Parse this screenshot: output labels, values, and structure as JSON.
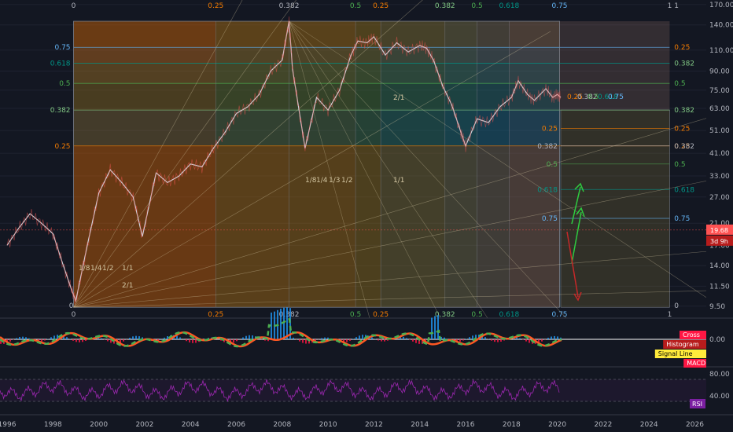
{
  "chart_data": [
    {
      "type": "line",
      "panel": "price",
      "scale": "log",
      "ylim": [
        9,
        175
      ],
      "y_ticks": [
        "170.00",
        "140.00",
        "110.00",
        "90.00",
        "75.00",
        "63.00",
        "51.00",
        "41.00",
        "33.00",
        "27.00",
        "21.00",
        "17.00",
        "14.00",
        "11.50",
        "9.50"
      ],
      "x_ticks": [
        "1996",
        "1998",
        "2000",
        "2002",
        "2004",
        "2006",
        "2008",
        "2010",
        "2012",
        "2014",
        "2016",
        "2018",
        "2020",
        "2022",
        "2024",
        "2026"
      ],
      "x_range": [
        1996,
        2027
      ],
      "series": [
        {
          "x": [
            1996.0,
            1996.5,
            1997.0,
            1997.5,
            1998.0,
            1998.4,
            1998.8,
            1999.0,
            1999.5,
            2000.0,
            2000.5,
            2001.0,
            2001.5,
            2001.9,
            2002.5,
            2003.0,
            2003.5,
            2004.0,
            2004.5,
            2005.0,
            2005.5,
            2006.0,
            2006.5,
            2007.0,
            2007.5,
            2008.0,
            2008.3,
            2008.45,
            2008.7,
            2009.0,
            2009.5,
            2010.0,
            2010.5,
            2011.0,
            2011.3,
            2011.7,
            2012.0,
            2012.5,
            2013.0,
            2013.5,
            2014.0,
            2014.3,
            2014.6,
            2015.0,
            2015.4,
            2015.8,
            2016.0,
            2016.5,
            2017.0,
            2017.5,
            2018.0,
            2018.3,
            2018.7,
            2019.0,
            2019.5,
            2019.8,
            2020.0,
            2020.15
          ],
          "values": [
            17,
            20,
            23,
            21,
            19,
            14.5,
            11.2,
            10,
            17,
            28,
            35,
            31,
            27,
            18.5,
            34,
            31,
            33,
            37,
            36,
            43,
            50,
            60,
            64,
            72,
            90,
            100,
            145,
            92,
            65,
            43,
            70,
            62,
            75,
            105,
            120,
            118,
            125,
            105,
            118,
            108,
            115,
            112,
            100,
            78,
            65,
            50,
            44,
            57,
            55,
            64,
            70,
            82,
            72,
            68,
            76,
            70,
            72,
            70
          ]
        }
      ]
    },
    {
      "type": "line",
      "panel": "macd",
      "y_ticks": [
        "0.00"
      ],
      "series": [
        {
          "name": "MACD",
          "values": []
        },
        {
          "name": "Signal Line",
          "values": []
        },
        {
          "name": "Histogram",
          "values": []
        }
      ],
      "legend": [
        "Cross",
        "Histogram",
        "Signal Line",
        "MACD"
      ]
    },
    {
      "type": "line",
      "panel": "rsi",
      "y_ticks": [
        "80.00",
        "40.00"
      ],
      "legend": [
        "RSI"
      ]
    }
  ],
  "price_panel": {
    "last_price": "19.68",
    "countdown": "3d 9h",
    "fib_levels": [
      "0.25",
      "0.382",
      "0.5",
      "0.618",
      "0.75"
    ],
    "fib_edges": [
      "0",
      "1"
    ],
    "time_fibs_top": [
      "0",
      "0.25",
      "0.382",
      "0.5",
      "0.25",
      "0.382",
      "0.5",
      "0.618",
      "0.75",
      "1"
    ],
    "time_fibs_bottom": [
      "0",
      "0.25",
      "0.382",
      "0.5",
      "0.25",
      "0.382",
      "0.5",
      "0.618",
      "0.75",
      "1"
    ],
    "fan_labels": [
      "1/8",
      "1/4",
      "1/3",
      "1/2",
      "1/1",
      "2/1"
    ],
    "inner_box_top_labels": [
      "0.25",
      "0.382",
      "0.5",
      "0.618",
      "0.75"
    ]
  },
  "colors": {
    "background": "#131722",
    "grid": "#1e2230",
    "up": "#26a69a",
    "down": "#ef5350",
    "rsi": "#9c27b0",
    "price_badge": "#ff5252",
    "fib_025": "#f57c00",
    "fib_0382": "#81c784",
    "fib_05": "#4caf50",
    "fib_0618": "#009688",
    "fib_075": "#64b5f6"
  }
}
